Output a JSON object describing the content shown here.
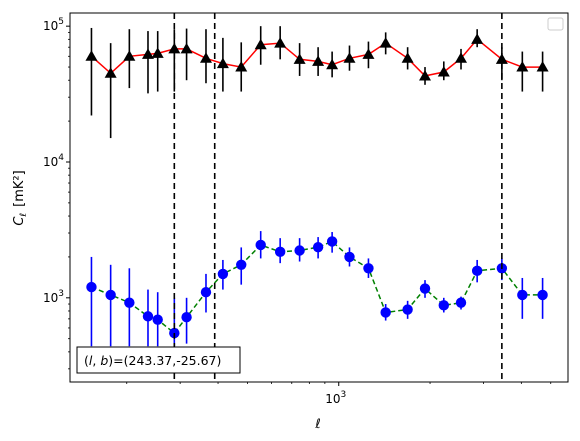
{
  "chart_data": {
    "type": "line",
    "title": "",
    "xlabel": "ℓ",
    "ylabel": "C",
    "ylabel_sub": "ℓ",
    "ylabel_unit": "[mK²]",
    "xscale": "log",
    "yscale": "log",
    "xlim": [
      130,
      5700
    ],
    "ylim": [
      240,
      125000
    ],
    "grid": false,
    "legend": "top-right (empty)",
    "x_tick_labels": [
      {
        "base": "10",
        "exp": "3",
        "value": 1000
      }
    ],
    "y_tick_labels": [
      {
        "base": "10",
        "exp": "3",
        "value": 1000
      },
      {
        "base": "10",
        "exp": "4",
        "value": 10000
      },
      {
        "base": "10",
        "exp": "5",
        "value": 100000
      }
    ],
    "vertical_lines": [
      287,
      390,
      3450
    ],
    "annotation": "(l, b)=(243.37,-25.67)",
    "annot_prefix": "(",
    "annot_l": "l",
    "annot_sep": ", ",
    "annot_b": "b",
    "annot_suffix": ")=(243.37,-25.67)",
    "series": [
      {
        "marker": "triangle",
        "color": "#000000",
        "line_color": "#ff0000",
        "line_style": "solid",
        "x": [
          153,
          177,
          204,
          235,
          253,
          287,
          315,
          365,
          415,
          477,
          553,
          641,
          743,
          855,
          951,
          1085,
          1253,
          1428,
          1687,
          1925,
          2220,
          2530,
          2860,
          3450,
          4030,
          4700
        ],
        "y": [
          60000,
          45000,
          60000,
          62000,
          63000,
          68000,
          68000,
          58000,
          53000,
          50000,
          73000,
          75000,
          57000,
          55000,
          52000,
          58000,
          62000,
          75000,
          58000,
          43000,
          46000,
          58000,
          80000,
          57000,
          50000,
          50000
        ],
        "err_low": [
          22000,
          15000,
          35000,
          32000,
          33000,
          33000,
          40000,
          38000,
          33000,
          33000,
          52000,
          57000,
          43000,
          43000,
          42000,
          47000,
          49000,
          62000,
          48000,
          37000,
          40000,
          48000,
          70000,
          40000,
          33000,
          33000
        ],
        "err_high": [
          97000,
          75000,
          95000,
          92000,
          92000,
          95000,
          96000,
          95000,
          82000,
          76000,
          100000,
          100000,
          75000,
          70000,
          65000,
          72000,
          77000,
          90000,
          70000,
          50000,
          55000,
          68000,
          95000,
          70000,
          65000,
          65000
        ]
      },
      {
        "marker": "circle",
        "color": "#0000ff",
        "line_color": "#008000",
        "line_style": "dashed",
        "x": [
          153,
          177,
          204,
          235,
          253,
          287,
          315,
          365,
          415,
          477,
          553,
          641,
          743,
          855,
          951,
          1085,
          1253,
          1428,
          1687,
          1925,
          2220,
          2530,
          2860,
          3450,
          4030,
          4700
        ],
        "y": [
          1200,
          1050,
          920,
          730,
          690,
          550,
          720,
          1100,
          1500,
          1750,
          2450,
          2180,
          2230,
          2360,
          2600,
          2000,
          1650,
          780,
          820,
          1170,
          880,
          920,
          1580,
          1650,
          1050,
          1050
        ],
        "err_low": [
          440,
          440,
          440,
          440,
          440,
          440,
          460,
          780,
          1150,
          1250,
          1950,
          1800,
          1850,
          1950,
          2150,
          1700,
          1400,
          680,
          700,
          1000,
          780,
          820,
          1300,
          1350,
          700,
          700
        ],
        "err_high": [
          2000,
          1750,
          1650,
          1150,
          1100,
          1000,
          1000,
          1500,
          1900,
          2350,
          3100,
          2750,
          2750,
          2800,
          3050,
          2350,
          1950,
          900,
          950,
          1350,
          1000,
          1020,
          1900,
          1950,
          1400,
          1400
        ]
      }
    ]
  }
}
